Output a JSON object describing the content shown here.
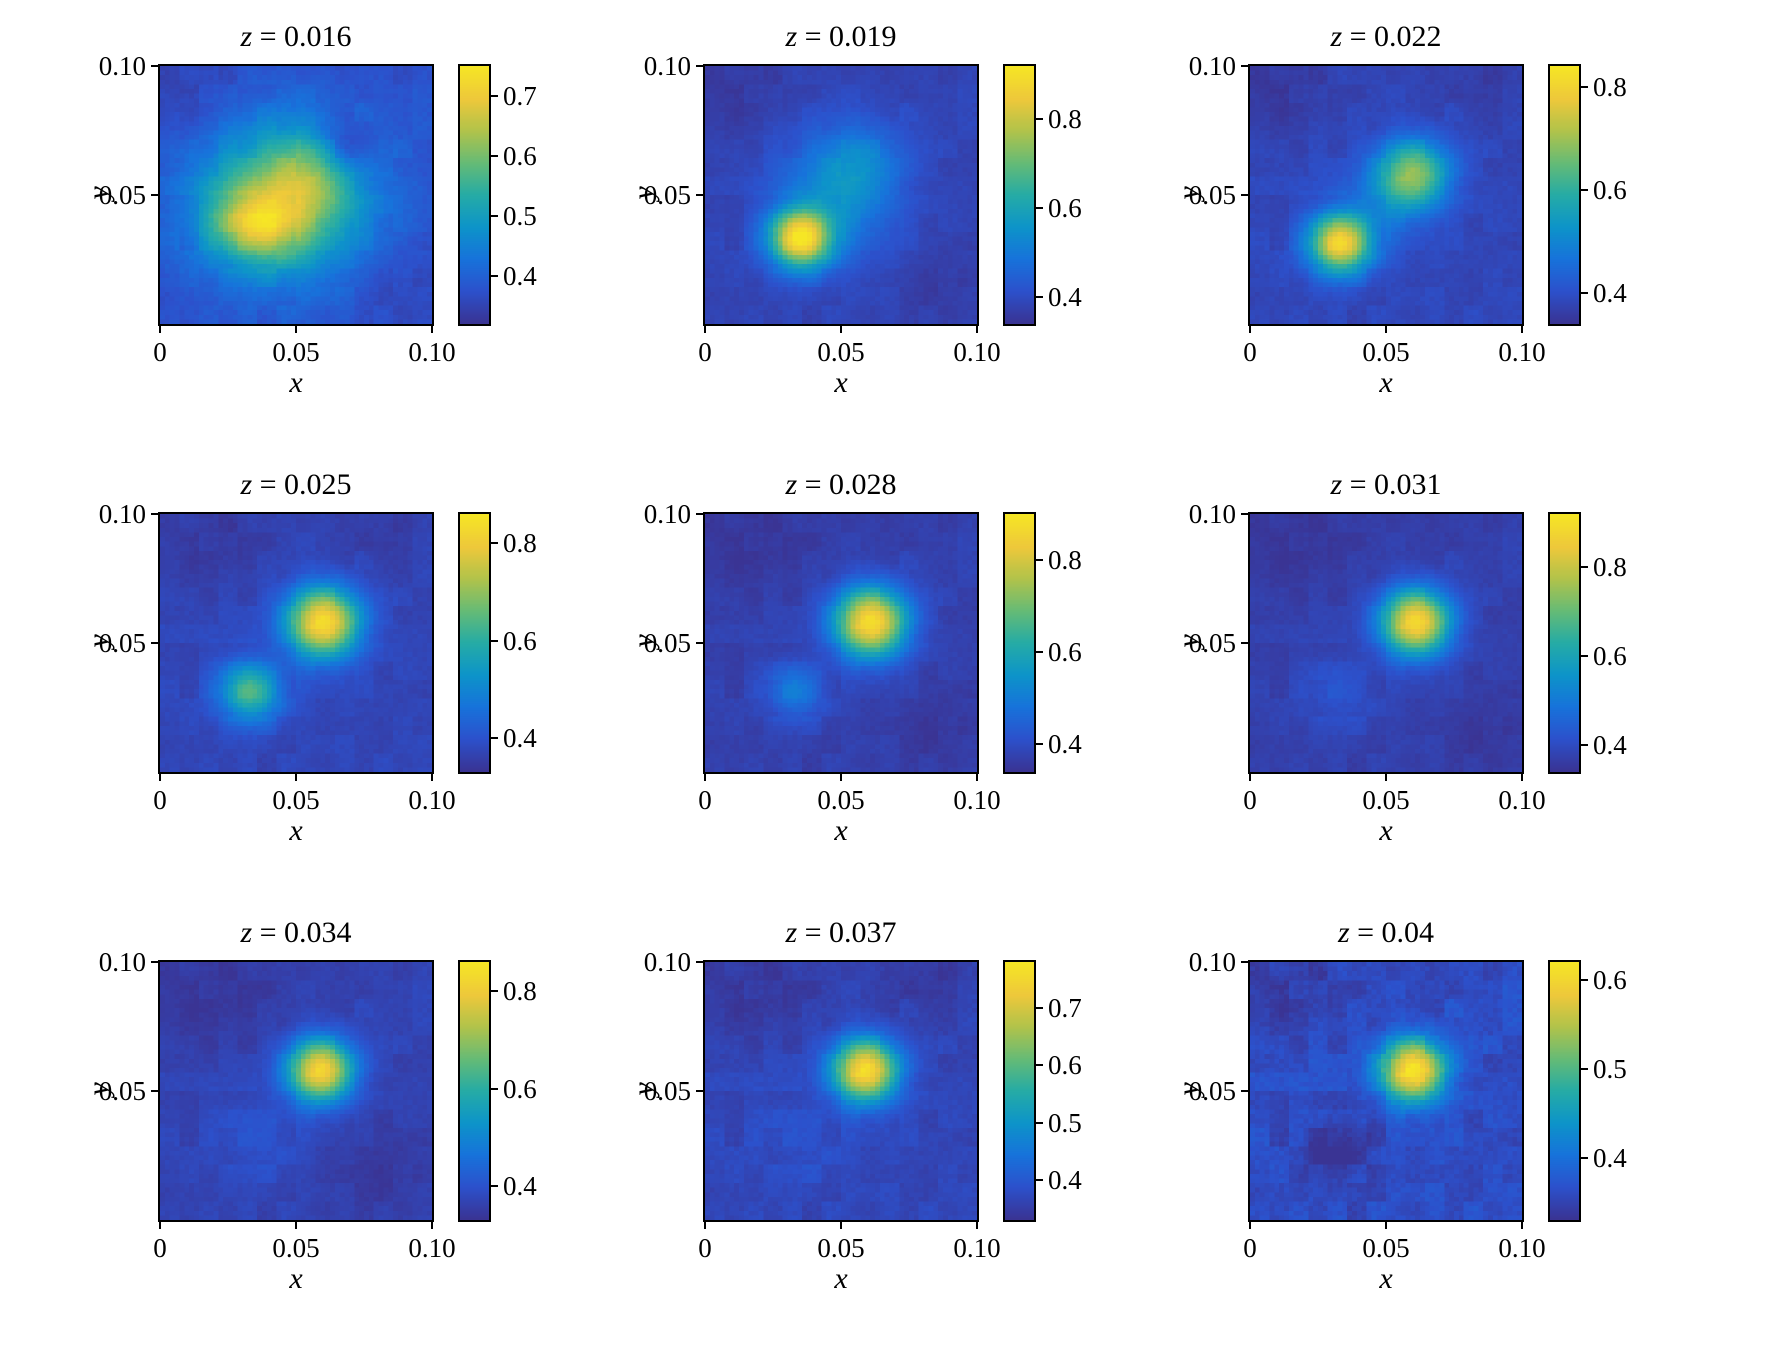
{
  "figure": {
    "background": "#ffffff",
    "axis_color": "#000000",
    "colormap_name": "parula",
    "colormap": {
      "positions": [
        0.0,
        0.125,
        0.25,
        0.375,
        0.5,
        0.625,
        0.75,
        0.875,
        1.0
      ],
      "colors": [
        "#3a3494",
        "#2c51cc",
        "#1773db",
        "#0d94c9",
        "#26aca6",
        "#66bb76",
        "#b1c34b",
        "#eec83b",
        "#f6e625"
      ]
    }
  },
  "chart_data": [
    {
      "type": "heatmap",
      "title": "z = 0.016",
      "title_var": "z",
      "title_rest": " = 0.016",
      "xlabel": "x",
      "ylabel": "y",
      "xlim": [
        0,
        0.1
      ],
      "ylim": [
        0,
        0.1
      ],
      "x_ticks": {
        "values": [
          0,
          0.05,
          0.1
        ],
        "labels": [
          "0",
          "0.05",
          "0.10"
        ]
      },
      "y_ticks": {
        "values": [
          0.05,
          0.1
        ],
        "labels": [
          "0.05",
          "0.10"
        ]
      },
      "colorbar": {
        "vmin": 0.32,
        "vmax": 0.75,
        "ticks": [
          0.4,
          0.5,
          0.6,
          0.7
        ],
        "tick_labels": [
          "0.4",
          "0.5",
          "0.6",
          "0.7"
        ]
      },
      "field": {
        "resolution": 56,
        "noise": 0.012,
        "background": 0.37,
        "blobs": [
          {
            "x": 0.046,
            "y": 0.049,
            "sx": 0.023,
            "sy": 0.022,
            "a": 0.21
          },
          {
            "x": 0.036,
            "y": 0.039,
            "sx": 0.012,
            "sy": 0.01,
            "a": 0.19
          },
          {
            "x": 0.056,
            "y": 0.058,
            "sx": 0.011,
            "sy": 0.011,
            "a": 0.09
          },
          {
            "x": 0.068,
            "y": 0.068,
            "sx": 0.008,
            "sy": 0.008,
            "a": -0.09
          },
          {
            "x": 0.013,
            "y": 0.09,
            "sx": 0.013,
            "sy": 0.013,
            "a": -0.025
          },
          {
            "x": 0.088,
            "y": 0.012,
            "sx": 0.013,
            "sy": 0.013,
            "a": -0.02
          }
        ]
      }
    },
    {
      "type": "heatmap",
      "title": "z = 0.019",
      "title_var": "z",
      "title_rest": " = 0.019",
      "xlabel": "x",
      "ylabel": "y",
      "xlim": [
        0,
        0.1
      ],
      "ylim": [
        0,
        0.1
      ],
      "x_ticks": {
        "values": [
          0,
          0.05,
          0.1
        ],
        "labels": [
          "0",
          "0.05",
          "0.10"
        ]
      },
      "y_ticks": {
        "values": [
          0.05,
          0.1
        ],
        "labels": [
          "0.05",
          "0.10"
        ]
      },
      "colorbar": {
        "vmin": 0.34,
        "vmax": 0.92,
        "ticks": [
          0.4,
          0.6,
          0.8
        ],
        "tick_labels": [
          "0.4",
          "0.6",
          "0.8"
        ]
      },
      "field": {
        "resolution": 56,
        "noise": 0.012,
        "background": 0.38,
        "blobs": [
          {
            "x": 0.035,
            "y": 0.033,
            "sx": 0.008,
            "sy": 0.008,
            "a": 0.5
          },
          {
            "x": 0.049,
            "y": 0.051,
            "sx": 0.015,
            "sy": 0.017,
            "a": 0.15
          },
          {
            "x": 0.059,
            "y": 0.064,
            "sx": 0.011,
            "sy": 0.011,
            "a": 0.07
          },
          {
            "x": 0.013,
            "y": 0.091,
            "sx": 0.012,
            "sy": 0.012,
            "a": -0.025
          },
          {
            "x": 0.087,
            "y": 0.013,
            "sx": 0.012,
            "sy": 0.012,
            "a": -0.02
          }
        ]
      }
    },
    {
      "type": "heatmap",
      "title": "z = 0.022",
      "title_var": "z",
      "title_rest": " = 0.022",
      "xlabel": "x",
      "ylabel": "y",
      "xlim": [
        0,
        0.1
      ],
      "ylim": [
        0,
        0.1
      ],
      "x_ticks": {
        "values": [
          0,
          0.05,
          0.1
        ],
        "labels": [
          "0",
          "0.05",
          "0.10"
        ]
      },
      "y_ticks": {
        "values": [
          0.05,
          0.1
        ],
        "labels": [
          "0.05",
          "0.10"
        ]
      },
      "colorbar": {
        "vmin": 0.34,
        "vmax": 0.84,
        "ticks": [
          0.4,
          0.6,
          0.8
        ],
        "tick_labels": [
          "0.4",
          "0.6",
          "0.8"
        ]
      },
      "field": {
        "resolution": 56,
        "noise": 0.012,
        "background": 0.38,
        "blobs": [
          {
            "x": 0.033,
            "y": 0.031,
            "sx": 0.008,
            "sy": 0.008,
            "a": 0.42
          },
          {
            "x": 0.06,
            "y": 0.058,
            "sx": 0.0095,
            "sy": 0.0095,
            "a": 0.3
          },
          {
            "x": 0.047,
            "y": 0.045,
            "sx": 0.011,
            "sy": 0.011,
            "a": 0.06
          },
          {
            "x": 0.012,
            "y": 0.092,
            "sx": 0.012,
            "sy": 0.012,
            "a": -0.03
          },
          {
            "x": 0.09,
            "y": 0.09,
            "sx": 0.012,
            "sy": 0.012,
            "a": -0.02
          }
        ]
      }
    },
    {
      "type": "heatmap",
      "title": "z = 0.025",
      "title_var": "z",
      "title_rest": " = 0.025",
      "xlabel": "x",
      "ylabel": "y",
      "xlim": [
        0,
        0.1
      ],
      "ylim": [
        0,
        0.1
      ],
      "x_ticks": {
        "values": [
          0,
          0.05,
          0.1
        ],
        "labels": [
          "0",
          "0.05",
          "0.10"
        ]
      },
      "y_ticks": {
        "values": [
          0.05,
          0.1
        ],
        "labels": [
          "0.05",
          "0.10"
        ]
      },
      "colorbar": {
        "vmin": 0.33,
        "vmax": 0.86,
        "ticks": [
          0.4,
          0.6,
          0.8
        ],
        "tick_labels": [
          "0.4",
          "0.6",
          "0.8"
        ]
      },
      "field": {
        "resolution": 56,
        "noise": 0.012,
        "background": 0.37,
        "blobs": [
          {
            "x": 0.06,
            "y": 0.058,
            "sx": 0.0095,
            "sy": 0.0095,
            "a": 0.47
          },
          {
            "x": 0.033,
            "y": 0.031,
            "sx": 0.008,
            "sy": 0.008,
            "a": 0.27
          },
          {
            "x": 0.02,
            "y": 0.09,
            "sx": 0.013,
            "sy": 0.013,
            "a": -0.027
          },
          {
            "x": 0.085,
            "y": 0.088,
            "sx": 0.012,
            "sy": 0.012,
            "a": -0.02
          }
        ]
      }
    },
    {
      "type": "heatmap",
      "title": "z = 0.028",
      "title_var": "z",
      "title_rest": " = 0.028",
      "xlabel": "x",
      "ylabel": "y",
      "xlim": [
        0,
        0.1
      ],
      "ylim": [
        0,
        0.1
      ],
      "x_ticks": {
        "values": [
          0,
          0.05,
          0.1
        ],
        "labels": [
          "0",
          "0.05",
          "0.10"
        ]
      },
      "y_ticks": {
        "values": [
          0.05,
          0.1
        ],
        "labels": [
          "0.05",
          "0.10"
        ]
      },
      "colorbar": {
        "vmin": 0.34,
        "vmax": 0.9,
        "ticks": [
          0.4,
          0.6,
          0.8
        ],
        "tick_labels": [
          "0.4",
          "0.6",
          "0.8"
        ]
      },
      "field": {
        "resolution": 56,
        "noise": 0.012,
        "background": 0.37,
        "blobs": [
          {
            "x": 0.061,
            "y": 0.058,
            "sx": 0.0095,
            "sy": 0.0095,
            "a": 0.51
          },
          {
            "x": 0.033,
            "y": 0.031,
            "sx": 0.0075,
            "sy": 0.0075,
            "a": 0.13
          },
          {
            "x": 0.018,
            "y": 0.09,
            "sx": 0.013,
            "sy": 0.013,
            "a": -0.025
          },
          {
            "x": 0.085,
            "y": 0.015,
            "sx": 0.012,
            "sy": 0.012,
            "a": -0.02
          }
        ]
      }
    },
    {
      "type": "heatmap",
      "title": "z = 0.031",
      "title_var": "z",
      "title_rest": " = 0.031",
      "xlabel": "x",
      "ylabel": "y",
      "xlim": [
        0,
        0.1
      ],
      "ylim": [
        0,
        0.1
      ],
      "x_ticks": {
        "values": [
          0,
          0.05,
          0.1
        ],
        "labels": [
          "0",
          "0.05",
          "0.10"
        ]
      },
      "y_ticks": {
        "values": [
          0.05,
          0.1
        ],
        "labels": [
          "0.05",
          "0.10"
        ]
      },
      "colorbar": {
        "vmin": 0.34,
        "vmax": 0.92,
        "ticks": [
          0.4,
          0.6,
          0.8
        ],
        "tick_labels": [
          "0.4",
          "0.6",
          "0.8"
        ]
      },
      "field": {
        "resolution": 56,
        "noise": 0.012,
        "background": 0.37,
        "blobs": [
          {
            "x": 0.061,
            "y": 0.058,
            "sx": 0.009,
            "sy": 0.009,
            "a": 0.52
          },
          {
            "x": 0.032,
            "y": 0.03,
            "sx": 0.01,
            "sy": 0.01,
            "a": 0.05
          },
          {
            "x": 0.018,
            "y": 0.09,
            "sx": 0.013,
            "sy": 0.013,
            "a": -0.025
          },
          {
            "x": 0.088,
            "y": 0.012,
            "sx": 0.012,
            "sy": 0.012,
            "a": -0.02
          }
        ]
      }
    },
    {
      "type": "heatmap",
      "title": "z = 0.034",
      "title_var": "z",
      "title_rest": " = 0.034",
      "xlabel": "x",
      "ylabel": "y",
      "xlim": [
        0,
        0.1
      ],
      "ylim": [
        0,
        0.1
      ],
      "x_ticks": {
        "values": [
          0,
          0.05,
          0.1
        ],
        "labels": [
          "0",
          "0.05",
          "0.10"
        ]
      },
      "y_ticks": {
        "values": [
          0.05,
          0.1
        ],
        "labels": [
          "0.05",
          "0.10"
        ]
      },
      "colorbar": {
        "vmin": 0.33,
        "vmax": 0.86,
        "ticks": [
          0.4,
          0.6,
          0.8
        ],
        "tick_labels": [
          "0.4",
          "0.6",
          "0.8"
        ]
      },
      "field": {
        "resolution": 56,
        "noise": 0.012,
        "background": 0.365,
        "blobs": [
          {
            "x": 0.059,
            "y": 0.058,
            "sx": 0.0085,
            "sy": 0.0085,
            "a": 0.46
          },
          {
            "x": 0.036,
            "y": 0.031,
            "sx": 0.012,
            "sy": 0.012,
            "a": 0.035
          },
          {
            "x": 0.02,
            "y": 0.088,
            "sx": 0.016,
            "sy": 0.016,
            "a": -0.028
          },
          {
            "x": 0.08,
            "y": 0.018,
            "sx": 0.015,
            "sy": 0.015,
            "a": -0.022
          }
        ]
      }
    },
    {
      "type": "heatmap",
      "title": "z = 0.037",
      "title_var": "z",
      "title_rest": " = 0.037",
      "xlabel": "x",
      "ylabel": "y",
      "xlim": [
        0,
        0.1
      ],
      "ylim": [
        0,
        0.1
      ],
      "x_ticks": {
        "values": [
          0,
          0.05,
          0.1
        ],
        "labels": [
          "0",
          "0.05",
          "0.10"
        ]
      },
      "y_ticks": {
        "values": [
          0.05,
          0.1
        ],
        "labels": [
          "0.05",
          "0.10"
        ]
      },
      "colorbar": {
        "vmin": 0.33,
        "vmax": 0.78,
        "ticks": [
          0.4,
          0.5,
          0.6,
          0.7
        ],
        "tick_labels": [
          "0.4",
          "0.5",
          "0.6",
          "0.7"
        ]
      },
      "field": {
        "resolution": 56,
        "noise": 0.012,
        "background": 0.365,
        "blobs": [
          {
            "x": 0.059,
            "y": 0.058,
            "sx": 0.0085,
            "sy": 0.0085,
            "a": 0.4
          },
          {
            "x": 0.035,
            "y": 0.03,
            "sx": 0.012,
            "sy": 0.012,
            "a": 0.02
          },
          {
            "x": 0.02,
            "y": 0.09,
            "sx": 0.015,
            "sy": 0.015,
            "a": -0.027
          },
          {
            "x": 0.085,
            "y": 0.09,
            "sx": 0.013,
            "sy": 0.013,
            "a": -0.022
          }
        ]
      }
    },
    {
      "type": "heatmap",
      "title": "z = 0.04",
      "title_var": "z",
      "title_rest": " = 0.04",
      "xlabel": "x",
      "ylabel": "y",
      "xlim": [
        0,
        0.1
      ],
      "ylim": [
        0,
        0.1
      ],
      "x_ticks": {
        "values": [
          0,
          0.05,
          0.1
        ],
        "labels": [
          "0",
          "0.05",
          "0.10"
        ]
      },
      "y_ticks": {
        "values": [
          0.05,
          0.1
        ],
        "labels": [
          "0.05",
          "0.10"
        ]
      },
      "colorbar": {
        "vmin": 0.33,
        "vmax": 0.62,
        "ticks": [
          0.4,
          0.5,
          0.6
        ],
        "tick_labels": [
          "0.4",
          "0.5",
          "0.6"
        ]
      },
      "field": {
        "resolution": 56,
        "noise": 0.012,
        "background": 0.36,
        "blobs": [
          {
            "x": 0.06,
            "y": 0.058,
            "sx": 0.0085,
            "sy": 0.0085,
            "a": 0.26
          },
          {
            "x": 0.032,
            "y": 0.027,
            "sx": 0.009,
            "sy": 0.009,
            "a": -0.035
          },
          {
            "x": 0.015,
            "y": 0.09,
            "sx": 0.012,
            "sy": 0.012,
            "a": -0.02
          }
        ]
      }
    }
  ]
}
